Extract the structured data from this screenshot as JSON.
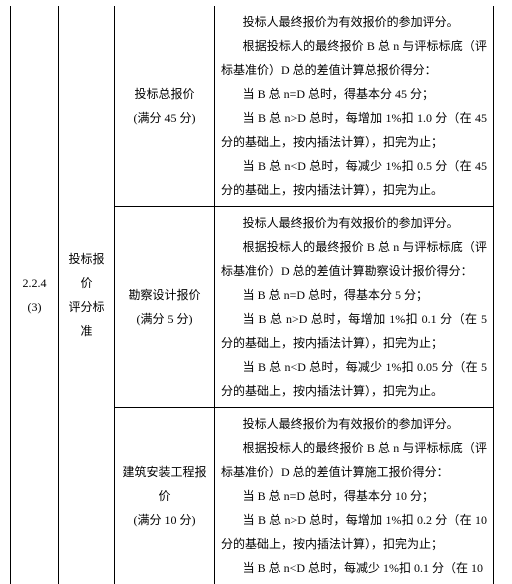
{
  "row_index": "2.2.4",
  "row_index_sub": "(3)",
  "topic_line1": "投标报价",
  "topic_line2": "评分标准",
  "items": [
    {
      "name_line1": "投标总报价",
      "name_line2": "(满分 45 分)",
      "desc_lines": [
        "投标人最终报价为有效报价的参加评分。",
        "根据投标人的最终报价 B 总 n 与评标标底（评标基准价）D 总的差值计算总报价得分：",
        "当 B 总 n=D 总时，得基本分 45 分；",
        "当 B 总 n>D 总时，每增加 1%扣 1.0 分（在 45分的基础上，按内插法计算），扣完为止；",
        "当 B 总 n<D 总时，每减少 1%扣 0.5 分（在 45分的基础上，按内插法计算），扣完为止。"
      ]
    },
    {
      "name_line1": "勘察设计报价",
      "name_line2": "(满分 5 分)",
      "desc_lines": [
        "投标人最终报价为有效报价的参加评分。",
        "根据投标人的最终报价 B 总 n 与评标标底（评标基准价）D 总的差值计算勘察设计报价得分：",
        "当 B 总 n=D 总时，得基本分 5 分；",
        "当 B 总 n>D 总时，每增加 1%扣 0.1 分（在 5分的基础上，按内插法计算），扣完为止；",
        "当 B 总 n<D 总时，每减少 1%扣 0.05 分（在 5分的基础上，按内插法计算），扣完为止。"
      ]
    },
    {
      "name_line1": "建筑安装工程报价",
      "name_line2": "(满分 10 分)",
      "desc_lines": [
        "投标人最终报价为有效报价的参加评分。",
        "根据投标人的最终报价 B 总 n 与评标标底（评标基准价）D 总的差值计算施工报价得分：",
        "当 B 总 n=D 总时，得基本分 10 分；",
        "当 B 总 n>D 总时，每增加 1%扣 0.2 分（在 10分的基础上，按内插法计算），扣完为止；",
        "当 B 总 n<D 总时，每减少 1%扣 0.1 分（在 10"
      ]
    }
  ]
}
